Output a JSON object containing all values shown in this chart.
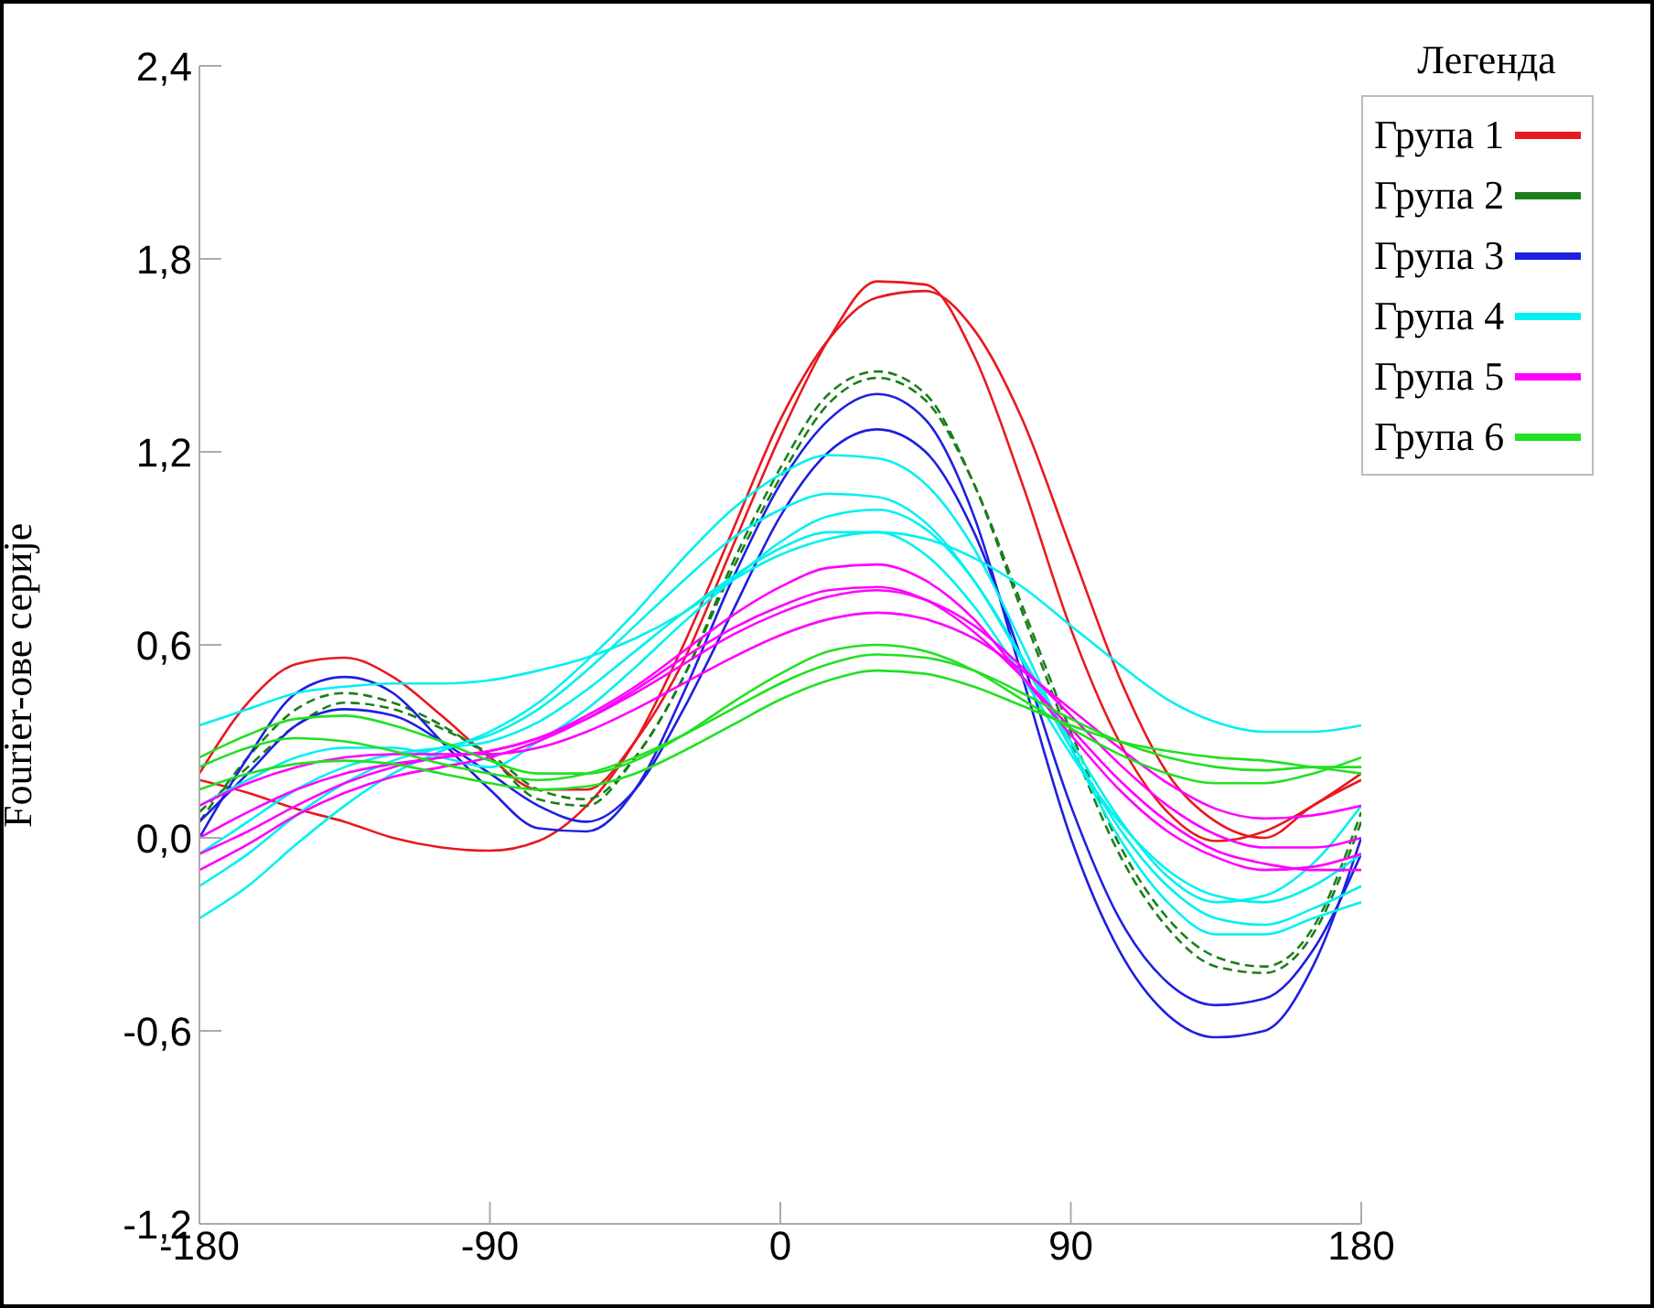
{
  "chart_data": {
    "type": "line",
    "ylabel": "Fourier-ове серије",
    "legend_title": "Легенда",
    "legend": "top right",
    "marker": "none",
    "grid": false,
    "x": [
      -180,
      -165,
      -150,
      -135,
      -120,
      -105,
      -90,
      -75,
      -60,
      -45,
      -30,
      -15,
      0,
      15,
      30,
      45,
      60,
      75,
      90,
      105,
      120,
      135,
      150,
      165,
      180
    ],
    "xlim": [
      -180,
      180
    ],
    "xticks": [
      -180,
      -90,
      0,
      90,
      180
    ],
    "ylim": [
      -1.2,
      2.4
    ],
    "yticks": [
      {
        "value": -1.2,
        "label": "-1,2"
      },
      {
        "value": -0.6,
        "label": "-0,6"
      },
      {
        "value": 0,
        "label": "0,0"
      },
      {
        "value": 0.6,
        "label": "0,6"
      },
      {
        "value": 1.2,
        "label": "1,2"
      },
      {
        "value": 1.8,
        "label": "1,8"
      },
      {
        "value": 2.4,
        "label": "2,4"
      }
    ],
    "series": [
      {
        "name": "Група 1",
        "color": "#e8191f",
        "values": [
          0.2,
          0.42,
          0.54,
          0.56,
          0.5,
          0.38,
          0.25,
          0.15,
          0.15,
          0.3,
          0.55,
          0.9,
          1.25,
          1.55,
          1.73,
          1.72,
          1.5,
          1.1,
          0.65,
          0.3,
          0.08,
          -0.01,
          0.02,
          0.1,
          0.2
        ]
      },
      {
        "color": "#e8191f",
        "values": [
          0.18,
          0.14,
          0.09,
          0.05,
          0.0,
          -0.03,
          -0.04,
          -0.01,
          0.1,
          0.3,
          0.6,
          0.95,
          1.3,
          1.55,
          1.68,
          1.7,
          1.58,
          1.3,
          0.9,
          0.5,
          0.2,
          0.05,
          0.0,
          0.1,
          0.18
        ]
      },
      {
        "name": "Група 2",
        "color": "#1a7f1a",
        "line_style": "dashed",
        "values": [
          0.05,
          0.25,
          0.4,
          0.45,
          0.42,
          0.35,
          0.25,
          0.12,
          0.1,
          0.25,
          0.5,
          0.85,
          1.15,
          1.38,
          1.45,
          1.38,
          1.1,
          0.7,
          0.3,
          -0.05,
          -0.28,
          -0.4,
          -0.42,
          -0.3,
          0.05
        ]
      },
      {
        "color": "#1a7f1a",
        "line_style": "dashed",
        "values": [
          0.08,
          0.22,
          0.35,
          0.42,
          0.4,
          0.34,
          0.26,
          0.15,
          0.12,
          0.25,
          0.5,
          0.83,
          1.12,
          1.35,
          1.43,
          1.36,
          1.1,
          0.72,
          0.33,
          -0.02,
          -0.25,
          -0.37,
          -0.4,
          -0.28,
          0.08
        ]
      },
      {
        "name": "Група 3",
        "color": "#1f1fe0",
        "values": [
          0.0,
          0.25,
          0.45,
          0.5,
          0.45,
          0.3,
          0.15,
          0.03,
          0.02,
          0.15,
          0.45,
          0.8,
          1.1,
          1.3,
          1.38,
          1.3,
          1.0,
          0.5,
          0.0,
          -0.35,
          -0.55,
          -0.62,
          -0.6,
          -0.4,
          0.0
        ]
      },
      {
        "color": "#1f1fe0",
        "values": [
          0.05,
          0.2,
          0.35,
          0.4,
          0.38,
          0.3,
          0.2,
          0.1,
          0.05,
          0.15,
          0.4,
          0.7,
          1.0,
          1.2,
          1.27,
          1.2,
          0.95,
          0.55,
          0.1,
          -0.25,
          -0.45,
          -0.52,
          -0.5,
          -0.35,
          -0.05
        ]
      },
      {
        "name": "Група 4",
        "color": "#00f0f0",
        "values": [
          -0.25,
          -0.15,
          -0.02,
          0.1,
          0.2,
          0.27,
          0.33,
          0.42,
          0.55,
          0.7,
          0.87,
          1.02,
          1.13,
          1.19,
          1.18,
          1.1,
          0.9,
          0.6,
          0.28,
          0.0,
          -0.2,
          -0.3,
          -0.3,
          -0.25,
          -0.2
        ]
      },
      {
        "color": "#00f0f0",
        "values": [
          -0.15,
          -0.05,
          0.07,
          0.17,
          0.24,
          0.28,
          0.32,
          0.4,
          0.52,
          0.66,
          0.8,
          0.93,
          1.02,
          1.07,
          1.06,
          0.98,
          0.8,
          0.55,
          0.28,
          0.03,
          -0.15,
          -0.25,
          -0.27,
          -0.22,
          -0.15
        ]
      },
      {
        "color": "#00f0f0",
        "values": [
          -0.05,
          0.05,
          0.15,
          0.22,
          0.26,
          0.28,
          0.3,
          0.36,
          0.46,
          0.58,
          0.7,
          0.81,
          0.9,
          0.95,
          0.95,
          0.88,
          0.72,
          0.5,
          0.26,
          0.05,
          -0.1,
          -0.18,
          -0.2,
          -0.15,
          -0.05
        ]
      },
      {
        "color": "#00f0f0",
        "values": [
          0.1,
          0.18,
          0.25,
          0.28,
          0.28,
          0.25,
          0.22,
          0.3,
          0.4,
          0.53,
          0.67,
          0.8,
          0.92,
          1.0,
          1.02,
          0.96,
          0.8,
          0.56,
          0.3,
          0.06,
          -0.12,
          -0.2,
          -0.18,
          -0.08,
          0.1
        ]
      },
      {
        "color": "#00f0f0",
        "values": [
          0.35,
          0.4,
          0.45,
          0.47,
          0.48,
          0.48,
          0.49,
          0.52,
          0.56,
          0.62,
          0.7,
          0.8,
          0.88,
          0.93,
          0.95,
          0.93,
          0.87,
          0.78,
          0.66,
          0.54,
          0.43,
          0.36,
          0.33,
          0.33,
          0.35
        ]
      },
      {
        "name": "Група 5",
        "color": "#ff00ff",
        "values": [
          -0.1,
          -0.02,
          0.07,
          0.14,
          0.19,
          0.22,
          0.25,
          0.3,
          0.37,
          0.46,
          0.56,
          0.65,
          0.72,
          0.77,
          0.78,
          0.74,
          0.64,
          0.5,
          0.34,
          0.18,
          0.05,
          -0.04,
          -0.08,
          -0.1,
          -0.1
        ]
      },
      {
        "color": "#ff00ff",
        "values": [
          0.0,
          0.08,
          0.15,
          0.2,
          0.23,
          0.25,
          0.27,
          0.31,
          0.37,
          0.45,
          0.54,
          0.63,
          0.7,
          0.75,
          0.77,
          0.74,
          0.66,
          0.53,
          0.38,
          0.23,
          0.1,
          0.01,
          -0.03,
          -0.03,
          0.0
        ]
      },
      {
        "color": "#ff00ff",
        "values": [
          0.1,
          0.17,
          0.22,
          0.25,
          0.26,
          0.26,
          0.26,
          0.28,
          0.33,
          0.4,
          0.48,
          0.56,
          0.63,
          0.68,
          0.7,
          0.68,
          0.62,
          0.52,
          0.4,
          0.28,
          0.17,
          0.09,
          0.06,
          0.07,
          0.1
        ]
      },
      {
        "color": "#ff00ff",
        "values": [
          -0.05,
          0.02,
          0.1,
          0.17,
          0.22,
          0.25,
          0.27,
          0.31,
          0.38,
          0.47,
          0.58,
          0.69,
          0.78,
          0.84,
          0.85,
          0.8,
          0.68,
          0.5,
          0.32,
          0.15,
          0.02,
          -0.06,
          -0.1,
          -0.09,
          -0.05
        ]
      },
      {
        "name": "Група 6",
        "color": "#22e022",
        "values": [
          0.22,
          0.28,
          0.31,
          0.3,
          0.27,
          0.23,
          0.2,
          0.18,
          0.2,
          0.25,
          0.32,
          0.4,
          0.48,
          0.54,
          0.57,
          0.56,
          0.52,
          0.45,
          0.37,
          0.3,
          0.25,
          0.22,
          0.21,
          0.22,
          0.22
        ]
      },
      {
        "color": "#22e022",
        "values": [
          0.25,
          0.32,
          0.37,
          0.38,
          0.35,
          0.3,
          0.24,
          0.2,
          0.2,
          0.24,
          0.32,
          0.42,
          0.51,
          0.58,
          0.6,
          0.58,
          0.52,
          0.43,
          0.34,
          0.26,
          0.2,
          0.17,
          0.17,
          0.2,
          0.25
        ]
      },
      {
        "color": "#22e022",
        "values": [
          0.15,
          0.2,
          0.23,
          0.24,
          0.23,
          0.2,
          0.17,
          0.15,
          0.16,
          0.2,
          0.27,
          0.35,
          0.43,
          0.49,
          0.52,
          0.51,
          0.47,
          0.41,
          0.35,
          0.3,
          0.27,
          0.25,
          0.24,
          0.22,
          0.2
        ]
      }
    ]
  }
}
